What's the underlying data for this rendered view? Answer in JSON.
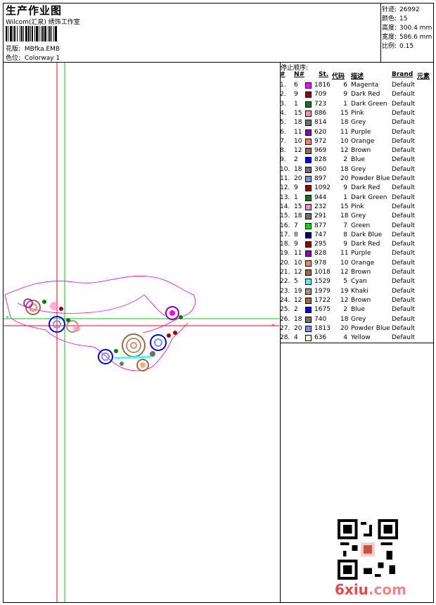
{
  "header": {
    "title": "生产作业图",
    "subtitle": "Wilcom(汇泉) 绣饰工作室",
    "design_label": "花版:",
    "design_value": "MBfka.EMB",
    "colorway_label": "色位:",
    "colorway_value": "Colorway 1"
  },
  "info": [
    {
      "label": "针迹:",
      "value": "26992"
    },
    {
      "label": "颜色:",
      "value": "15"
    },
    {
      "label": "高度:",
      "value": "300.4 mm"
    },
    {
      "label": "宽度:",
      "value": "586.6 mm"
    },
    {
      "label": "比例:",
      "value": "0.15"
    }
  ],
  "sequence": {
    "title": "停止顺序:",
    "headers": [
      "#",
      "N#",
      "St.",
      "代码",
      "描述",
      "Brand",
      "元素"
    ],
    "rows": [
      {
        "n": "1.",
        "needle": "6",
        "color": "#ff00ff",
        "st": "1816",
        "code": "6",
        "desc": "Magenta",
        "brand": "Default"
      },
      {
        "n": "2.",
        "needle": "9",
        "color": "#a00000",
        "st": "709",
        "code": "9",
        "desc": "Dark Red",
        "brand": "Default"
      },
      {
        "n": "3.",
        "needle": "1",
        "color": "#008000",
        "st": "723",
        "code": "1",
        "desc": "Dark Green",
        "brand": "Default"
      },
      {
        "n": "4.",
        "needle": "15",
        "color": "#ff88c0",
        "st": "886",
        "code": "15",
        "desc": "Pink",
        "brand": "Default"
      },
      {
        "n": "5.",
        "needle": "18",
        "color": "#707070",
        "st": "814",
        "code": "18",
        "desc": "Grey",
        "brand": "Default"
      },
      {
        "n": "6.",
        "needle": "11",
        "color": "#9000c0",
        "st": "620",
        "code": "11",
        "desc": "Purple",
        "brand": "Default"
      },
      {
        "n": "7.",
        "needle": "10",
        "color": "#ff8060",
        "st": "972",
        "code": "10",
        "desc": "Orange",
        "brand": "Default"
      },
      {
        "n": "8.",
        "needle": "12",
        "color": "#a06840",
        "st": "969",
        "code": "12",
        "desc": "Brown",
        "brand": "Default"
      },
      {
        "n": "9.",
        "needle": "2",
        "color": "#0000ff",
        "st": "828",
        "code": "2",
        "desc": "Blue",
        "brand": "Default"
      },
      {
        "n": "10.",
        "needle": "18",
        "color": "#707070",
        "st": "360",
        "code": "18",
        "desc": "Grey",
        "brand": "Default"
      },
      {
        "n": "11.",
        "needle": "20",
        "color": "#8090e0",
        "st": "897",
        "code": "20",
        "desc": "Powder Blue",
        "brand": "Default"
      },
      {
        "n": "12.",
        "needle": "9",
        "color": "#a00000",
        "st": "1092",
        "code": "9",
        "desc": "Dark Red",
        "brand": "Default"
      },
      {
        "n": "13.",
        "needle": "1",
        "color": "#008000",
        "st": "944",
        "code": "1",
        "desc": "Dark Green",
        "brand": "Default"
      },
      {
        "n": "14.",
        "needle": "15",
        "color": "#ff88c0",
        "st": "232",
        "code": "15",
        "desc": "Pink",
        "brand": "Default"
      },
      {
        "n": "15.",
        "needle": "18",
        "color": "#707070",
        "st": "291",
        "code": "18",
        "desc": "Grey",
        "brand": "Default"
      },
      {
        "n": "16.",
        "needle": "7",
        "color": "#00e000",
        "st": "877",
        "code": "7",
        "desc": "Green",
        "brand": "Default"
      },
      {
        "n": "17.",
        "needle": "8",
        "color": "#000080",
        "st": "747",
        "code": "8",
        "desc": "Dark Blue",
        "brand": "Default"
      },
      {
        "n": "18.",
        "needle": "9",
        "color": "#a00000",
        "st": "295",
        "code": "9",
        "desc": "Dark Red",
        "brand": "Default"
      },
      {
        "n": "19.",
        "needle": "11",
        "color": "#9000c0",
        "st": "828",
        "code": "11",
        "desc": "Purple",
        "brand": "Default"
      },
      {
        "n": "20.",
        "needle": "10",
        "color": "#ff8060",
        "st": "978",
        "code": "10",
        "desc": "Orange",
        "brand": "Default"
      },
      {
        "n": "21.",
        "needle": "12",
        "color": "#a06840",
        "st": "1018",
        "code": "12",
        "desc": "Brown",
        "brand": "Default"
      },
      {
        "n": "22.",
        "needle": "5",
        "color": "#40ffff",
        "st": "1529",
        "code": "5",
        "desc": "Cyan",
        "brand": "Default"
      },
      {
        "n": "23.",
        "needle": "19",
        "color": "#a09878",
        "st": "1979",
        "code": "19",
        "desc": "Khaki",
        "brand": "Default"
      },
      {
        "n": "24.",
        "needle": "12",
        "color": "#a06840",
        "st": "1722",
        "code": "12",
        "desc": "Brown",
        "brand": "Default"
      },
      {
        "n": "25.",
        "needle": "2",
        "color": "#0000ff",
        "st": "1675",
        "code": "2",
        "desc": "Blue",
        "brand": "Default"
      },
      {
        "n": "26.",
        "needle": "18",
        "color": "#707070",
        "st": "740",
        "code": "18",
        "desc": "Grey",
        "brand": "Default"
      },
      {
        "n": "27.",
        "needle": "20",
        "color": "#8090e0",
        "st": "1813",
        "code": "20",
        "desc": "Powder Blue",
        "brand": "Default"
      },
      {
        "n": "28.",
        "needle": "4",
        "color": "#ffffc0",
        "st": "636",
        "code": "4",
        "desc": "Yellow",
        "brand": "Default"
      }
    ]
  },
  "watermark": {
    "brand_main": "6xiu",
    "brand_suffix": ".com"
  }
}
